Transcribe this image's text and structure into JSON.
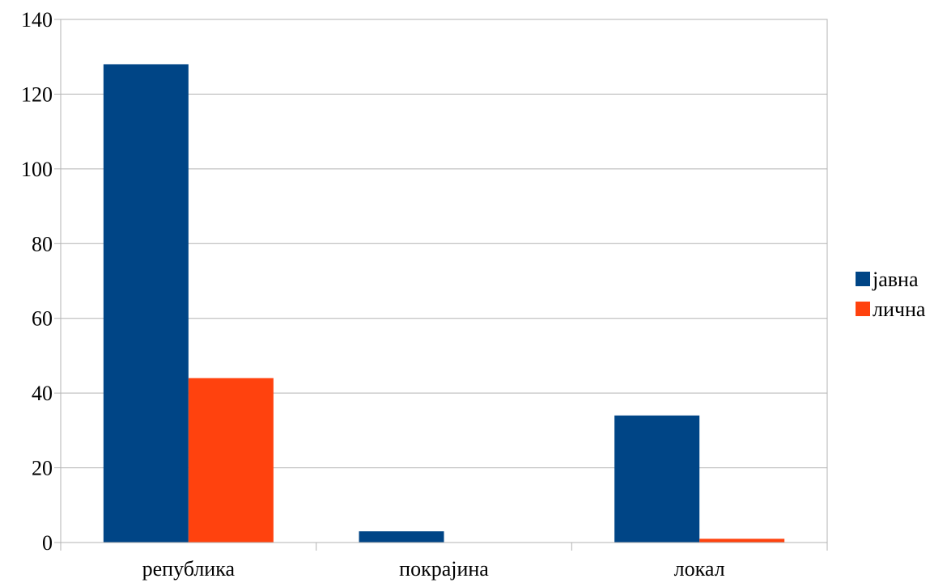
{
  "chart_data": {
    "type": "bar",
    "categories": [
      "република",
      "покрајина",
      "локал"
    ],
    "series": [
      {
        "name": "јавна",
        "values": [
          128,
          3,
          34
        ],
        "color": "#004586"
      },
      {
        "name": "лична",
        "values": [
          44,
          0,
          1
        ],
        "color": "#ff420e"
      }
    ],
    "title": "",
    "xlabel": "",
    "ylabel": "",
    "ylim": [
      0,
      140
    ],
    "yticks": [
      0,
      20,
      40,
      60,
      80,
      100,
      120,
      140
    ],
    "grid": true,
    "legend": "right"
  }
}
